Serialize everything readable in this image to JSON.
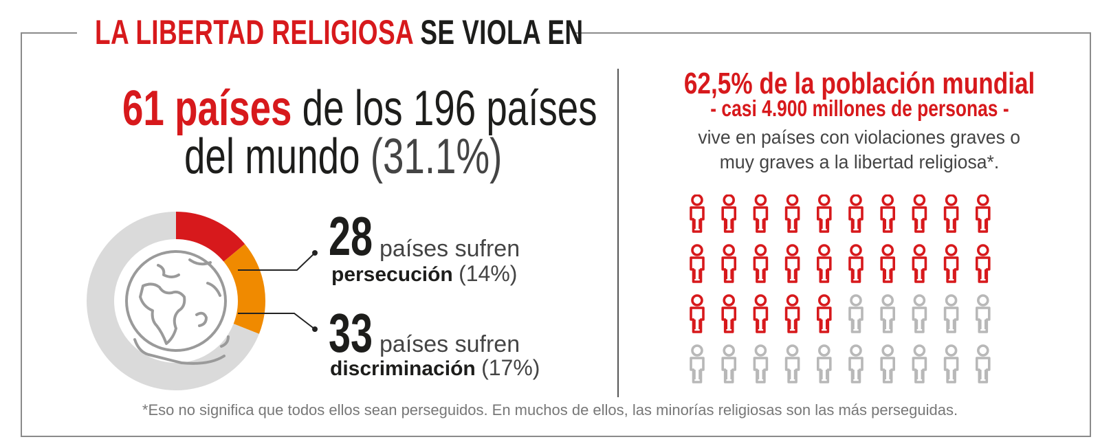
{
  "title": {
    "part_red": "LA LIBERTAD RELIGIOSA",
    "part_dark": "SE VIOLA EN"
  },
  "left": {
    "count": "61",
    "countries_word": "países",
    "of_total": "de los 196 países",
    "world": "del mundo",
    "percent": "(31.1%)"
  },
  "donut": {
    "segments": [
      {
        "name": "persecución",
        "value": 14,
        "color": "#d7191c"
      },
      {
        "name": "discriminación",
        "value": 17,
        "color": "#f08a00"
      },
      {
        "name": "resto",
        "value": 69,
        "color": "#dadada"
      }
    ],
    "icon": "globe-icon"
  },
  "stats": {
    "persecution": {
      "number": "28",
      "line": "países sufren",
      "label": "persecución",
      "percent": "(14%)"
    },
    "discrimination": {
      "number": "33",
      "line": "países sufren",
      "label": "discriminación",
      "percent": "(17%)"
    }
  },
  "right": {
    "headline": "62,5% de la población mundial",
    "subhead": "- casi 4.900 millones de personas -",
    "body_line1": "vive en países con violaciones graves o",
    "body_line2": "muy graves a la libertad religiosa*."
  },
  "people_chart": {
    "total": 40,
    "highlighted": 25,
    "columns": 10,
    "highlight_color": "#d7191c",
    "base_color": "#b8b8b8",
    "icon": "person-icon"
  },
  "footnote": "*Eso no significa que todos ellos sean perseguidos. En muchos de ellos, las minorías religiosas son las más perseguidas."
}
